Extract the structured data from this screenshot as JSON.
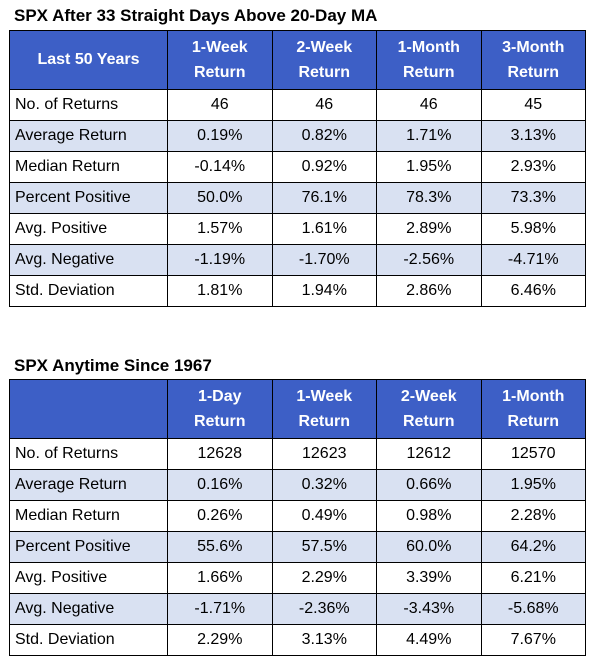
{
  "table1": {
    "title": "SPX After 33 Straight Days Above 20-Day MA",
    "corner": "Last 50 Years",
    "headers": [
      {
        "l1": "1-Week",
        "l2": "Return"
      },
      {
        "l1": "2-Week",
        "l2": "Return"
      },
      {
        "l1": "1-Month",
        "l2": "Return"
      },
      {
        "l1": "3-Month",
        "l2": "Return"
      }
    ],
    "rows": [
      {
        "label": "No. of Returns",
        "values": [
          "46",
          "46",
          "46",
          "45"
        ]
      },
      {
        "label": "Average Return",
        "values": [
          "0.19%",
          "0.82%",
          "1.71%",
          "3.13%"
        ]
      },
      {
        "label": "Median Return",
        "values": [
          "-0.14%",
          "0.92%",
          "1.95%",
          "2.93%"
        ]
      },
      {
        "label": "Percent Positive",
        "values": [
          "50.0%",
          "76.1%",
          "78.3%",
          "73.3%"
        ]
      },
      {
        "label": "Avg. Positive",
        "values": [
          "1.57%",
          "1.61%",
          "2.89%",
          "5.98%"
        ]
      },
      {
        "label": "Avg. Negative",
        "values": [
          "-1.19%",
          "-1.70%",
          "-2.56%",
          "-4.71%"
        ]
      },
      {
        "label": "Std. Deviation",
        "values": [
          "1.81%",
          "1.94%",
          "2.86%",
          "6.46%"
        ]
      }
    ]
  },
  "table2": {
    "title": "SPX Anytime Since 1967",
    "corner": "",
    "headers": [
      {
        "l1": "1-Day",
        "l2": "Return"
      },
      {
        "l1": "1-Week",
        "l2": "Return"
      },
      {
        "l1": "2-Week",
        "l2": "Return"
      },
      {
        "l1": "1-Month",
        "l2": "Return"
      }
    ],
    "rows": [
      {
        "label": "No. of Returns",
        "values": [
          "12628",
          "12623",
          "12612",
          "12570"
        ]
      },
      {
        "label": "Average Return",
        "values": [
          "0.16%",
          "0.32%",
          "0.66%",
          "1.95%"
        ]
      },
      {
        "label": "Median Return",
        "values": [
          "0.26%",
          "0.49%",
          "0.98%",
          "2.28%"
        ]
      },
      {
        "label": "Percent Positive",
        "values": [
          "55.6%",
          "57.5%",
          "60.0%",
          "64.2%"
        ]
      },
      {
        "label": "Avg. Positive",
        "values": [
          "1.66%",
          "2.29%",
          "3.39%",
          "6.21%"
        ]
      },
      {
        "label": "Avg. Negative",
        "values": [
          "-1.71%",
          "-2.36%",
          "-3.43%",
          "-5.68%"
        ]
      },
      {
        "label": "Std. Deviation",
        "values": [
          "2.29%",
          "3.13%",
          "4.49%",
          "7.67%"
        ]
      }
    ]
  },
  "colors": {
    "header_bg": "#3d5fc6",
    "header_text": "#ffffff",
    "alt_row_bg": "#d9e1f2"
  }
}
